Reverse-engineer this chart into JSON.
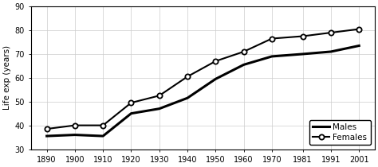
{
  "years": [
    1890,
    1900,
    1910,
    1920,
    1930,
    1940,
    1950,
    1960,
    1970,
    1981,
    1991,
    2001
  ],
  "males": [
    35.5,
    36.0,
    35.5,
    45.0,
    47.0,
    51.5,
    59.5,
    65.5,
    69.0,
    70.0,
    71.0,
    73.5
  ],
  "females": [
    38.5,
    40.0,
    40.0,
    49.5,
    52.5,
    60.5,
    67.0,
    71.0,
    76.5,
    77.5,
    79.0,
    80.5
  ],
  "ylabel": "Life exp (years)",
  "ylim": [
    30,
    90
  ],
  "yticks": [
    30,
    40,
    50,
    60,
    70,
    80,
    90
  ],
  "legend_males": "Males",
  "legend_females": "Females",
  "line_color": "black",
  "bg_color": "white"
}
